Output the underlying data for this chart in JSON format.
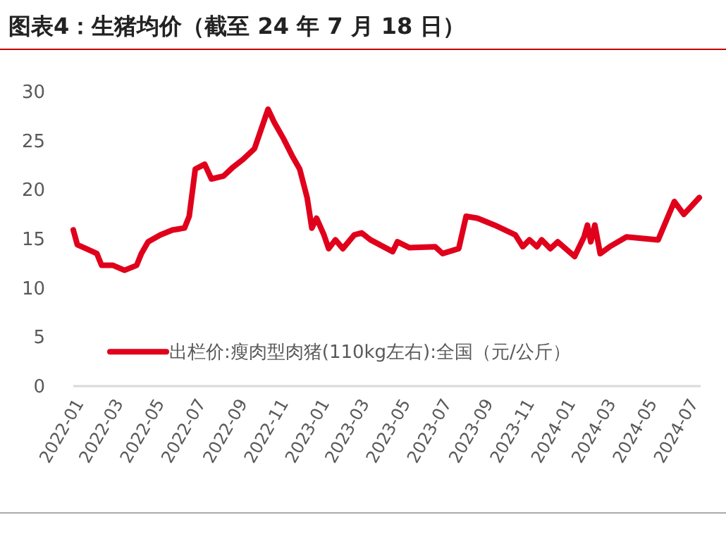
{
  "chart_data": {
    "type": "line",
    "title": "图表4：生猪均价（截至 24 年 7 月 18 日）",
    "x": [
      "2022-01-01",
      "2022-01-07",
      "2022-01-20",
      "2022-02-05",
      "2022-02-12",
      "2022-03-01",
      "2022-03-18",
      "2022-04-05",
      "2022-04-12",
      "2022-04-22",
      "2022-05-10",
      "2022-05-28",
      "2022-06-15",
      "2022-06-22",
      "2022-07-01",
      "2022-07-15",
      "2022-07-25",
      "2022-08-12",
      "2022-08-26",
      "2022-09-10",
      "2022-09-27",
      "2022-10-08",
      "2022-10-17",
      "2022-10-26",
      "2022-11-09",
      "2022-11-23",
      "2022-12-03",
      "2022-12-14",
      "2022-12-21",
      "2022-12-28",
      "2023-01-08",
      "2023-01-15",
      "2023-01-25",
      "2023-02-05",
      "2023-02-22",
      "2023-03-05",
      "2023-03-18",
      "2023-04-20",
      "2023-04-27",
      "2023-05-15",
      "2023-06-22",
      "2023-07-03",
      "2023-07-27",
      "2023-08-07",
      "2023-08-24",
      "2023-09-18",
      "2023-10-19",
      "2023-10-30",
      "2023-11-09",
      "2023-11-20",
      "2023-11-27",
      "2023-12-10",
      "2023-12-21",
      "2024-01-15",
      "2024-01-29",
      "2024-02-03",
      "2024-02-08",
      "2024-02-14",
      "2024-02-22",
      "2024-03-07",
      "2024-04-01",
      "2024-05-18",
      "2024-06-11",
      "2024-06-25",
      "2024-07-06",
      "2024-07-18"
    ],
    "series": [
      {
        "name": "出栏价:瘦肉型肉猪(110kg左右):全国（元/公斤）",
        "color": "#e0001b",
        "values": [
          15.9,
          14.4,
          14.0,
          13.5,
          12.3,
          12.3,
          11.8,
          12.3,
          13.5,
          14.7,
          15.4,
          15.9,
          16.1,
          17.3,
          22.1,
          22.6,
          21.1,
          21.4,
          22.3,
          23.1,
          24.2,
          26.4,
          28.2,
          26.9,
          25.2,
          23.3,
          22.1,
          19.2,
          16.1,
          17.1,
          15.4,
          14.0,
          14.9,
          14.0,
          15.4,
          15.6,
          14.9,
          13.7,
          14.7,
          14.1,
          14.2,
          13.5,
          14.0,
          17.3,
          17.1,
          16.4,
          15.4,
          14.2,
          14.9,
          14.2,
          14.9,
          14.0,
          14.7,
          13.2,
          15.2,
          16.4,
          14.7,
          16.4,
          13.5,
          14.2,
          15.2,
          14.9,
          18.8,
          17.5,
          18.3,
          19.2
        ]
      }
    ],
    "xlim": [
      "2022-01-01",
      "2024-07-20"
    ],
    "xticks": [
      {
        "value": "2022-01-01",
        "label": "2022-01"
      },
      {
        "value": "2022-03-01",
        "label": "2022-03"
      },
      {
        "value": "2022-05-01",
        "label": "2022-05"
      },
      {
        "value": "2022-07-01",
        "label": "2022-07"
      },
      {
        "value": "2022-09-01",
        "label": "2022-09"
      },
      {
        "value": "2022-11-01",
        "label": "2022-11"
      },
      {
        "value": "2023-01-01",
        "label": "2023-01"
      },
      {
        "value": "2023-03-01",
        "label": "2023-03"
      },
      {
        "value": "2023-05-01",
        "label": "2023-05"
      },
      {
        "value": "2023-07-01",
        "label": "2023-07"
      },
      {
        "value": "2023-09-01",
        "label": "2023-09"
      },
      {
        "value": "2023-11-01",
        "label": "2023-11"
      },
      {
        "value": "2024-01-01",
        "label": "2024-01"
      },
      {
        "value": "2024-03-01",
        "label": "2024-03"
      },
      {
        "value": "2024-05-01",
        "label": "2024-05"
      },
      {
        "value": "2024-07-01",
        "label": "2024-07"
      }
    ],
    "ylim": [
      0,
      30
    ],
    "yticks": [
      0,
      5,
      10,
      15,
      20,
      25,
      30
    ],
    "grid": false,
    "legend": "bottom",
    "marker": "none",
    "line_style": "solid"
  }
}
